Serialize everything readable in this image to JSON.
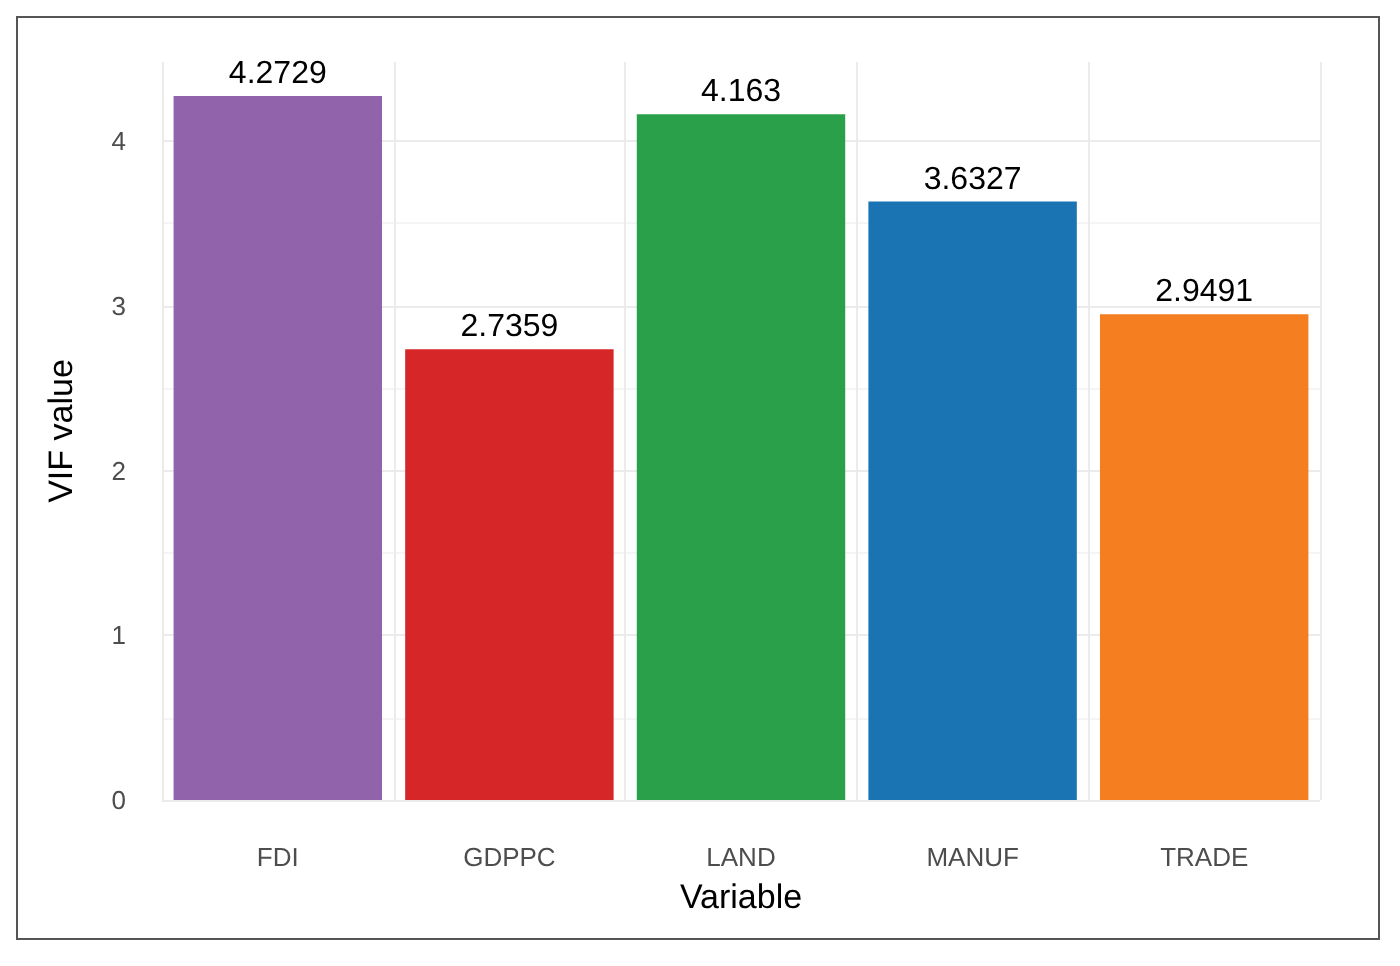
{
  "chart_data": {
    "type": "bar",
    "xlabel": "Variable",
    "ylabel": "VIF value",
    "categories": [
      "FDI",
      "GDPPC",
      "LAND",
      "MANUF",
      "TRADE"
    ],
    "values": [
      4.2729,
      2.7359,
      4.163,
      3.6327,
      2.9491
    ],
    "colors": [
      "#9063ab",
      "#d62628",
      "#2ba04a",
      "#1a74b4",
      "#f57f20"
    ],
    "ylim": [
      0,
      4.48
    ],
    "yticks": [
      0,
      1,
      2,
      3,
      4
    ],
    "grid": true,
    "data_labels": true
  }
}
